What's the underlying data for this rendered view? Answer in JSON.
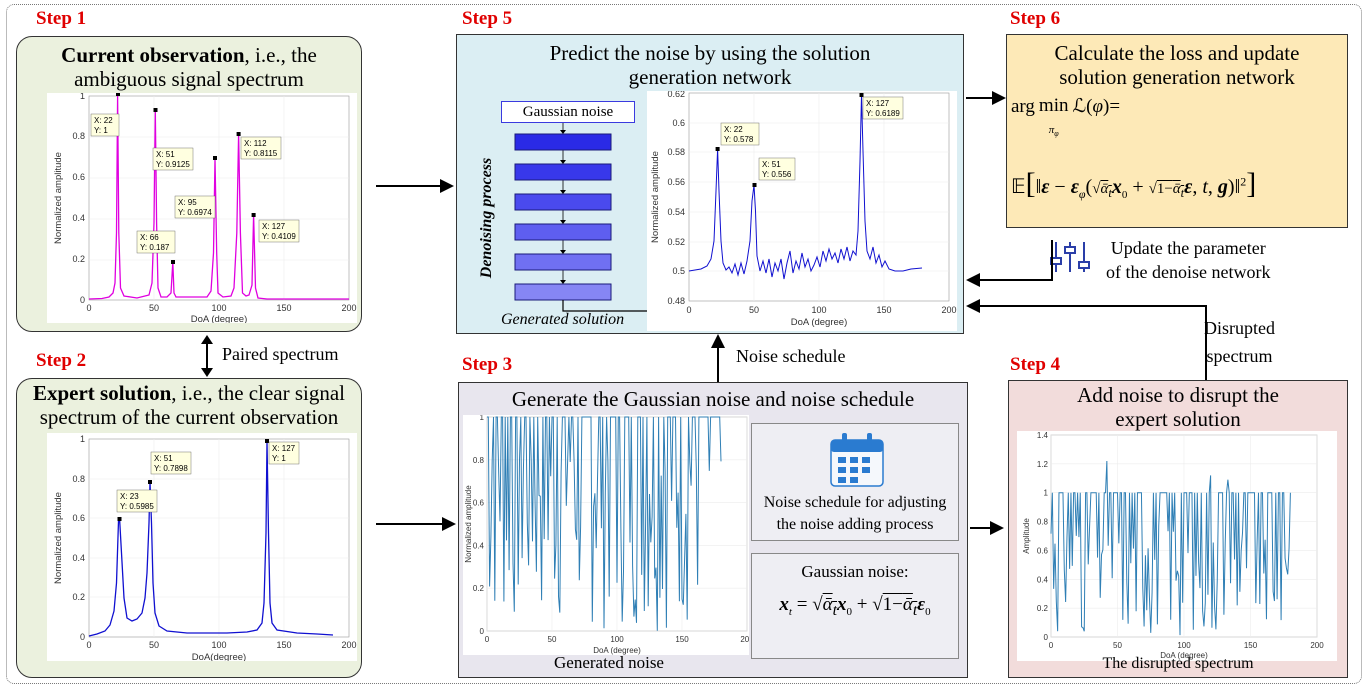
{
  "steps": {
    "s1": "Step 1",
    "s2": "Step 2",
    "s3": "Step 3",
    "s4": "Step 4",
    "s5": "Step 5",
    "s6": "Step 6"
  },
  "step1": {
    "title_bold": "Current observation",
    "title_rest": ", i.e.,  the",
    "title_line2": "ambiguous signal spectrum",
    "chart": {
      "xlabel": "DoA (degree)",
      "ylabel": "Normalized amplitude",
      "xticks": [
        "0",
        "50",
        "100",
        "150",
        "200"
      ],
      "yticks": [
        "0",
        "0.2",
        "0.4",
        "0.6",
        "0.8",
        "1"
      ],
      "datatips": [
        {
          "x": "X: 22",
          "y": "Y: 1"
        },
        {
          "x": "X: 51",
          "y": "Y: 0.9125"
        },
        {
          "x": "X: 112",
          "y": "Y: 0.8115"
        },
        {
          "x": "X: 95",
          "y": "Y: 0.6974"
        },
        {
          "x": "X: 127",
          "y": "Y: 0.4109"
        },
        {
          "x": "X: 66",
          "y": "Y: 0.187"
        }
      ]
    }
  },
  "paired_label": "Paired spectrum",
  "step2": {
    "title_bold": "Expert solution",
    "title_rest": ", i.e., the clear signal",
    "title_line2": "spectrum of the current observation",
    "chart": {
      "xlabel": "DoA(degree)",
      "ylabel": "Normalized amplitude",
      "xticks": [
        "0",
        "50",
        "100",
        "150",
        "200"
      ],
      "yticks": [
        "0",
        "0.2",
        "0.4",
        "0.6",
        "0.8",
        "1"
      ],
      "datatips": [
        {
          "x": "X: 51",
          "y": "Y: 0.7898"
        },
        {
          "x": "X: 127",
          "y": "Y: 1"
        },
        {
          "x": "X: 23",
          "y": "Y: 0.5985"
        }
      ]
    }
  },
  "step5": {
    "title_line1": "Predict the noise by using the solution",
    "title_line2": "generation network",
    "gaussian_box": "Gaussian noise",
    "denoising": "Denoising process",
    "generated_solution": "Generated solution",
    "chart": {
      "xlabel": "DoA (degree)",
      "ylabel": "Normalized amplitude",
      "xticks": [
        "0",
        "50",
        "100",
        "150",
        "200"
      ],
      "yticks": [
        "0.48",
        "0.5",
        "0.52",
        "0.54",
        "0.56",
        "0.58",
        "0.6",
        "0.62"
      ],
      "datatips": [
        {
          "x": "X: 22",
          "y": "Y: 0.578"
        },
        {
          "x": "X: 51",
          "y": "Y: 0.556"
        },
        {
          "x": "X: 127",
          "y": "Y: 0.6189"
        }
      ]
    }
  },
  "step6": {
    "title_line1": "Calculate the loss and update",
    "title_line2": "solution generation network",
    "update_line1": "Update the parameter",
    "update_line2": "of the denoise network"
  },
  "step3": {
    "title": "Generate the Gaussian noise and noise schedule",
    "caption": "Generated noise",
    "schedule_line1": "Noise schedule for adjusting",
    "schedule_line2": "the noise adding process",
    "gaussian_label": "Gaussian noise:",
    "chart": {
      "xlabel": "DoA (degree)",
      "ylabel": "Normalized amplitude",
      "xticks": [
        "0",
        "50",
        "100",
        "150",
        "200"
      ],
      "yticks": [
        "0",
        "0.2",
        "0.4",
        "0.6",
        "0.8",
        "1"
      ]
    }
  },
  "noise_schedule_label": "Noise schedule",
  "step4": {
    "title_line1": "Add noise to disrupt the",
    "title_line2": "expert solution",
    "caption": "The disrupted spectrum",
    "chart": {
      "xlabel": "DoA (degree)",
      "ylabel": "Amplitude",
      "xticks": [
        "0",
        "50",
        "100",
        "150",
        "200"
      ],
      "yticks": [
        "0",
        "0.2",
        "0.4",
        "0.6",
        "0.8",
        "1",
        "1.2",
        "1.4"
      ]
    }
  },
  "disrupted_line1": "Disrupted",
  "disrupted_line2": "spectrum",
  "colors": {
    "step_red": "#e00000",
    "magenta": "#e000e0",
    "blue": "#1010d0",
    "noise_blue": "#2f7fb5"
  }
}
